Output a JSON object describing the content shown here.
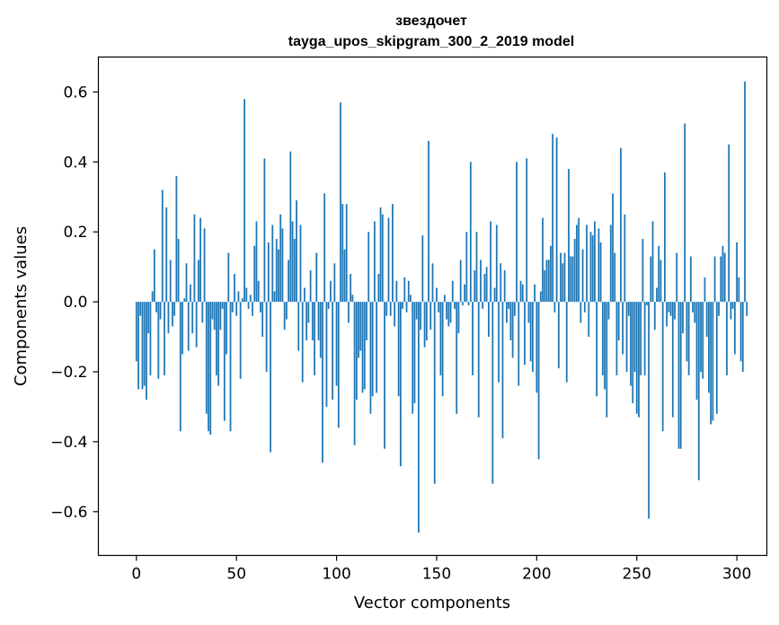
{
  "chart_data": {
    "type": "bar",
    "title": "звездочет",
    "subtitle": "tayga_upos_skipgram_300_2_2019 model",
    "xlabel": "Vector components",
    "ylabel": "Components values",
    "xlim": [
      -19,
      315
    ],
    "ylim": [
      -0.725,
      0.7
    ],
    "xticks": [
      0,
      50,
      100,
      150,
      200,
      250,
      300
    ],
    "yticks": [
      -0.6,
      -0.4,
      -0.2,
      0.0,
      0.2,
      0.4,
      0.6
    ],
    "xtick_labels": [
      "0",
      "50",
      "100",
      "150",
      "200",
      "250",
      "300"
    ],
    "ytick_labels": [
      "−0.6",
      "−0.4",
      "−0.2",
      "0.0",
      "0.2",
      "0.4",
      "0.6"
    ],
    "bar_color": "#1f77b4",
    "grid": false,
    "x_start": 0,
    "values": [
      -0.17,
      -0.25,
      -0.04,
      -0.25,
      -0.24,
      -0.28,
      -0.09,
      -0.21,
      0.03,
      0.15,
      -0.03,
      -0.22,
      -0.05,
      0.32,
      -0.21,
      0.27,
      -0.09,
      0.12,
      -0.07,
      -0.04,
      0.36,
      0.18,
      -0.37,
      -0.15,
      0.01,
      0.11,
      -0.14,
      0.05,
      -0.09,
      0.25,
      -0.13,
      0.12,
      0.24,
      -0.06,
      0.21,
      -0.32,
      -0.37,
      -0.38,
      -0.05,
      -0.08,
      -0.21,
      -0.24,
      -0.08,
      -0.02,
      -0.34,
      -0.15,
      0.14,
      -0.37,
      -0.03,
      0.08,
      -0.04,
      0.03,
      -0.22,
      0.01,
      0.58,
      0.04,
      -0.02,
      0.02,
      -0.04,
      0.16,
      0.23,
      0.06,
      -0.03,
      -0.1,
      0.41,
      -0.2,
      0.17,
      -0.43,
      0.22,
      0.03,
      0.18,
      0.15,
      0.25,
      0.21,
      -0.08,
      -0.05,
      0.12,
      0.43,
      0.23,
      0.18,
      0.29,
      -0.14,
      0.22,
      -0.23,
      0.04,
      -0.11,
      -0.06,
      0.09,
      -0.11,
      -0.21,
      0.14,
      -0.11,
      -0.16,
      -0.46,
      0.31,
      -0.3,
      -0.02,
      0.06,
      -0.28,
      0.11,
      -0.24,
      -0.36,
      0.57,
      0.28,
      0.15,
      0.28,
      -0.06,
      0.08,
      0.02,
      -0.41,
      -0.28,
      -0.16,
      -0.14,
      -0.26,
      -0.25,
      -0.11,
      0.2,
      -0.32,
      -0.27,
      0.23,
      -0.26,
      0.08,
      0.27,
      0.25,
      -0.42,
      -0.04,
      0.24,
      -0.04,
      0.28,
      -0.07,
      0.06,
      -0.27,
      -0.47,
      -0.02,
      0.07,
      -0.03,
      0.06,
      0.02,
      -0.32,
      -0.29,
      -0.05,
      -0.66,
      -0.08,
      0.19,
      -0.13,
      -0.11,
      0.46,
      -0.08,
      0.11,
      -0.52,
      0.04,
      -0.03,
      -0.21,
      -0.27,
      0.02,
      -0.05,
      -0.07,
      -0.06,
      0.06,
      -0.02,
      -0.32,
      -0.09,
      0.12,
      -0.01,
      0.05,
      0.2,
      -0.01,
      0.4,
      -0.21,
      0.09,
      0.2,
      -0.33,
      0.12,
      -0.02,
      0.08,
      0.1,
      -0.1,
      0.23,
      -0.52,
      0.04,
      0.22,
      -0.23,
      0.11,
      -0.39,
      0.09,
      -0.06,
      -0.02,
      -0.11,
      -0.16,
      -0.04,
      0.4,
      -0.24,
      0.06,
      0.05,
      -0.18,
      0.41,
      -0.06,
      -0.17,
      -0.2,
      0.05,
      -0.26,
      -0.45,
      0.03,
      0.24,
      0.09,
      0.12,
      0.12,
      0.16,
      0.48,
      -0.03,
      0.47,
      -0.19,
      0.14,
      0.11,
      0.14,
      -0.23,
      0.38,
      0.13,
      0.13,
      0.18,
      0.22,
      0.24,
      -0.06,
      0.15,
      -0.03,
      0.22,
      -0.1,
      0.2,
      0.19,
      0.23,
      -0.27,
      0.21,
      0.17,
      -0.21,
      -0.25,
      -0.33,
      -0.05,
      0.22,
      0.31,
      0.14,
      -0.21,
      -0.11,
      0.44,
      -0.15,
      0.25,
      -0.2,
      -0.04,
      -0.24,
      -0.29,
      -0.2,
      -0.32,
      -0.33,
      -0.21,
      0.18,
      -0.21,
      -0.01,
      -0.62,
      0.13,
      0.23,
      -0.08,
      0.04,
      0.16,
      0.12,
      -0.37,
      0.37,
      -0.07,
      -0.03,
      -0.04,
      -0.33,
      -0.05,
      0.14,
      -0.42,
      -0.42,
      -0.09,
      0.51,
      -0.17,
      -0.21,
      0.13,
      -0.03,
      -0.06,
      -0.28,
      -0.51,
      -0.2,
      -0.22,
      0.07,
      -0.1,
      -0.26,
      -0.35,
      -0.34,
      0.13,
      -0.32,
      -0.04,
      0.13,
      0.16,
      0.14,
      -0.21,
      0.45,
      -0.05,
      -0.02,
      -0.15,
      0.17,
      0.07,
      -0.17,
      -0.2,
      0.63,
      -0.04
    ]
  }
}
